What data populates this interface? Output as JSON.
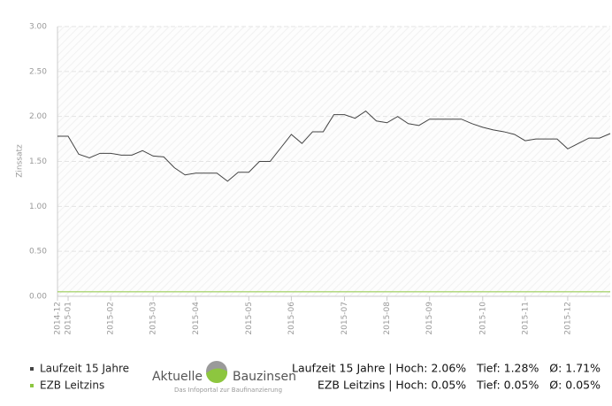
{
  "chart_data": {
    "type": "line",
    "y_label": "Zinssatz",
    "categories": [
      "2014-12",
      "2015-01",
      null,
      null,
      null,
      "2015-02",
      null,
      null,
      null,
      "2015-03",
      null,
      null,
      null,
      "2015-04",
      null,
      null,
      null,
      null,
      "2015-05",
      null,
      null,
      null,
      "2015-06",
      null,
      null,
      null,
      null,
      "2015-07",
      null,
      null,
      null,
      "2015-08",
      null,
      null,
      null,
      "2015-09",
      null,
      null,
      null,
      null,
      "2015-10",
      null,
      null,
      null,
      "2015-11",
      null,
      null,
      null,
      "2015-12",
      null,
      null,
      null,
      null
    ],
    "series": [
      {
        "name": "Laufzeit 15 Jahre",
        "color": "#444444",
        "values": [
          1.78,
          1.78,
          1.58,
          1.54,
          1.59,
          1.59,
          1.57,
          1.57,
          1.62,
          1.56,
          1.55,
          1.43,
          1.35,
          1.37,
          1.37,
          1.37,
          1.28,
          1.38,
          1.38,
          1.5,
          1.5,
          1.65,
          1.8,
          1.7,
          1.83,
          1.83,
          2.02,
          2.02,
          1.98,
          2.06,
          1.95,
          1.93,
          2.0,
          1.92,
          1.9,
          1.97,
          1.97,
          1.97,
          1.97,
          1.92,
          1.88,
          1.85,
          1.83,
          1.8,
          1.73,
          1.75,
          1.75,
          1.75,
          1.64,
          1.7,
          1.76,
          1.76,
          1.81
        ]
      },
      {
        "name": "EZB Leitzins",
        "color": "#8dc63f",
        "values": [
          0.05,
          0.05,
          0.05,
          0.05,
          0.05,
          0.05,
          0.05,
          0.05,
          0.05,
          0.05,
          0.05,
          0.05,
          0.05,
          0.05,
          0.05,
          0.05,
          0.05,
          0.05,
          0.05,
          0.05,
          0.05,
          0.05,
          0.05,
          0.05,
          0.05,
          0.05,
          0.05,
          0.05,
          0.05,
          0.05,
          0.05,
          0.05,
          0.05,
          0.05,
          0.05,
          0.05,
          0.05,
          0.05,
          0.05,
          0.05,
          0.05,
          0.05,
          0.05,
          0.05,
          0.05,
          0.05,
          0.05,
          0.05,
          0.05,
          0.05,
          0.05,
          0.05,
          0.05
        ]
      }
    ],
    "ylim": [
      0,
      3
    ],
    "yticks": [
      {
        "value": 0,
        "label": "0.00"
      },
      {
        "value": 0.5,
        "label": "0.50"
      },
      {
        "value": 1,
        "label": "1.00"
      },
      {
        "value": 1.5,
        "label": "1.50"
      },
      {
        "value": 2,
        "label": "2.00"
      },
      {
        "value": 2.5,
        "label": "2.50"
      },
      {
        "value": 3,
        "label": "3.00"
      }
    ],
    "grid": true,
    "logo": {
      "left": "Aktuelle",
      "right": "Bauzinsen",
      "tagline": "Das Infoportal zur Baufinanzierung"
    },
    "stats": [
      "Laufzeit 15 Jahre | Hoch: 2.06%   Tief: 1.28%   Ø: 1.71%",
      "EZB Leitzins | Hoch: 0.05%   Tief: 0.05%   Ø: 0.05%"
    ]
  }
}
